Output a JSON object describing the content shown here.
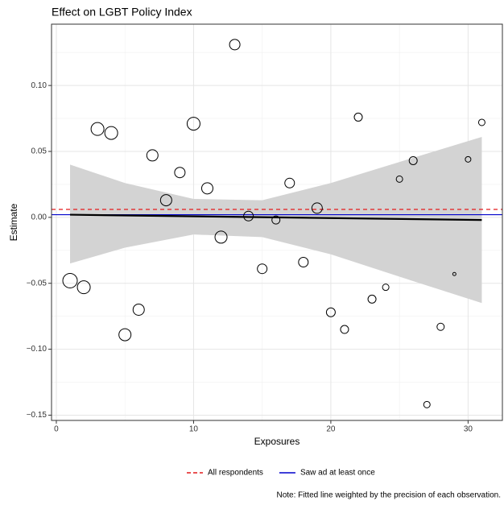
{
  "chart_data": {
    "type": "scatter",
    "title": "Effect on LGBT Policy Index",
    "x_label": "Exposures",
    "y_label": "Estimate",
    "note": "Note: Fitted line weighted by the precision of each observation.",
    "x": [
      1,
      2,
      3,
      4,
      5,
      6,
      7,
      8,
      9,
      10,
      11,
      12,
      13,
      14,
      15,
      16,
      17,
      18,
      19,
      20,
      21,
      22,
      23,
      24,
      25,
      26,
      27,
      28,
      29,
      30,
      31
    ],
    "values": [
      -0.048,
      -0.053,
      0.067,
      0.064,
      -0.089,
      -0.07,
      0.047,
      0.013,
      0.034,
      0.071,
      0.022,
      -0.015,
      0.131,
      0.001,
      -0.039,
      -0.002,
      0.026,
      -0.034,
      0.007,
      -0.072,
      -0.085,
      0.076,
      -0.062,
      -0.053,
      0.029,
      0.043,
      -0.142,
      -0.083,
      -0.043,
      0.044,
      0.072
    ],
    "sizes": [
      9,
      8,
      8,
      8,
      7.5,
      7,
      7,
      7,
      6.5,
      8,
      7,
      7.5,
      6.5,
      6,
      6,
      5,
      6,
      6,
      6.5,
      5.5,
      5,
      5,
      5,
      4,
      4,
      5,
      4,
      4.5,
      2,
      3.5,
      4
    ],
    "marker_color": "#000000",
    "band": {
      "x": [
        1,
        5,
        10,
        15,
        20,
        25,
        31
      ],
      "upper": [
        0.04,
        0.026,
        0.014,
        0.013,
        0.026,
        0.042,
        0.061
      ],
      "lower": [
        -0.035,
        -0.023,
        -0.013,
        -0.015,
        -0.028,
        -0.045,
        -0.065
      ],
      "color": "#d3d3d3"
    },
    "fit": {
      "x": [
        1,
        31
      ],
      "y": [
        0.002,
        -0.002
      ],
      "color": "#000000"
    },
    "reference_lines": [
      {
        "name": "All respondents",
        "value": 0.006,
        "color": "#e41a1c",
        "dashed": true
      },
      {
        "name": "Saw ad at least once",
        "value": 0.002,
        "color": "#0000cc",
        "dashed": false
      }
    ],
    "xlim": [
      -0.35,
      32.5
    ],
    "ylim": [
      -0.154,
      0.1465
    ],
    "xticks": [
      0,
      10,
      20,
      30
    ],
    "xminor": [
      5,
      15,
      25
    ],
    "yticks": [
      {
        "value": 0.1,
        "label": "0.10"
      },
      {
        "value": 0.05,
        "label": "0.05"
      },
      {
        "value": 0,
        "label": "0.00"
      },
      {
        "value": -0.05,
        "label": "−0.05"
      },
      {
        "value": -0.1,
        "label": "−0.10"
      },
      {
        "value": -0.15,
        "label": "−0.15"
      }
    ],
    "yminor": [
      0.125,
      0.075,
      0.025,
      -0.025,
      -0.075,
      -0.125
    ],
    "grid": true,
    "legend_position": "bottom"
  }
}
